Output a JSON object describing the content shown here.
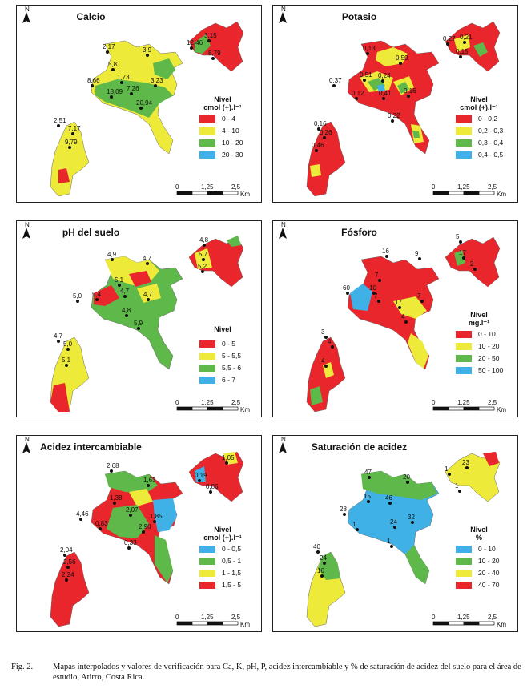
{
  "colors": {
    "red": "#e8262b",
    "yellow": "#eeea3a",
    "green": "#5fb84a",
    "blue": "#3fb1e6"
  },
  "north_label": "N",
  "scale": {
    "ticks": [
      "0",
      "1,25",
      "2,5"
    ],
    "unit": "Km"
  },
  "panels": [
    {
      "title": "Calcio",
      "legend_title": "Nivel",
      "legend_unit": "cmol (+).l⁻¹",
      "classes": [
        "0 - 4",
        "4 - 10",
        "10 - 20",
        "20 - 30"
      ],
      "class_colors": [
        "#e8262b",
        "#eeea3a",
        "#5fb84a",
        "#3fb1e6"
      ],
      "points": [
        "3,15",
        "12,46",
        "8,79",
        "2,17",
        "3,9",
        "5,8",
        "1,73",
        "8,66",
        "7,26",
        "3,23",
        "18,09",
        "20,94",
        "2,51",
        "7,17",
        "9,79"
      ]
    },
    {
      "title": "Potasio",
      "legend_title": "Nivel",
      "legend_unit": "cmol (+).l⁻¹",
      "classes": [
        "0 - 0,2",
        "0,2 - 0,3",
        "0,3 - 0,4",
        "0,4 - 0,5"
      ],
      "class_colors": [
        "#e8262b",
        "#eeea3a",
        "#5fb84a",
        "#3fb1e6"
      ],
      "points": [
        "0,27",
        "0,21",
        "0,15",
        "0,13",
        "0,59",
        "0,24",
        "0,51",
        "0,37",
        "0,12",
        "0,41",
        "0,16",
        "0,22",
        "0,16",
        "0,26",
        "0,46"
      ]
    },
    {
      "title": "pH del suelo",
      "legend_title": "Nivel",
      "legend_unit": "",
      "classes": [
        "0 - 5",
        "5 - 5,5",
        "5,5 - 6",
        "6 - 7"
      ],
      "class_colors": [
        "#e8262b",
        "#eeea3a",
        "#5fb84a",
        "#3fb1e6"
      ],
      "points": [
        "4,8",
        "5,7",
        "5,2",
        "4,9",
        "4,7",
        "5,1",
        "5,0",
        "5,4",
        "4,7",
        "4,7",
        "4,8",
        "5,9",
        "4,7",
        "5,0",
        "5,1"
      ]
    },
    {
      "title": "Fósforo",
      "legend_title": "Nivel",
      "legend_unit": "mg.l⁻¹",
      "classes": [
        "0 - 10",
        "10 - 20",
        "20 - 50",
        "50 - 100"
      ],
      "class_colors": [
        "#e8262b",
        "#eeea3a",
        "#5fb84a",
        "#3fb1e6"
      ],
      "points": [
        "5",
        "17",
        "2",
        "16",
        "9",
        "7",
        "10",
        "60",
        "7",
        "7",
        "17",
        "4",
        "3",
        "4",
        "4"
      ]
    },
    {
      "title": "Acidez intercambiable",
      "legend_title": "Nivel",
      "legend_unit": "cmol (+).l⁻¹",
      "classes": [
        "0 - 0,5",
        "0,5 - 1",
        "1 - 1,5",
        "1,5 - 5"
      ],
      "class_colors": [
        "#3fb1e6",
        "#5fb84a",
        "#eeea3a",
        "#e8262b"
      ],
      "points": [
        "1,05",
        "0,19",
        "0,86",
        "2,68",
        "1,63",
        "1,38",
        "4,46",
        "2,07",
        "1,85",
        "0,83",
        "2,90",
        "0,33",
        "2,04",
        "2,56",
        "2,24"
      ]
    },
    {
      "title": "Saturación de acidez",
      "legend_title": "Nivel",
      "legend_unit": "%",
      "classes": [
        "0 - 10",
        "10 - 20",
        "20 - 40",
        "40 - 70"
      ],
      "class_colors": [
        "#3fb1e6",
        "#5fb84a",
        "#eeea3a",
        "#e8262b"
      ],
      "points": [
        "1",
        "23",
        "1",
        "47",
        "20",
        "15",
        "46",
        "28",
        "1",
        "24",
        "32",
        "1",
        "40",
        "24",
        "16"
      ]
    }
  ],
  "caption": {
    "fig": "Fig. 2.",
    "text": "Mapas interpolados y valores de verificación para Ca, K, pH, P, acidez  intercambiable y % de saturación de acidez del suelo para el área de estudio, Atirro, Costa Rica."
  }
}
